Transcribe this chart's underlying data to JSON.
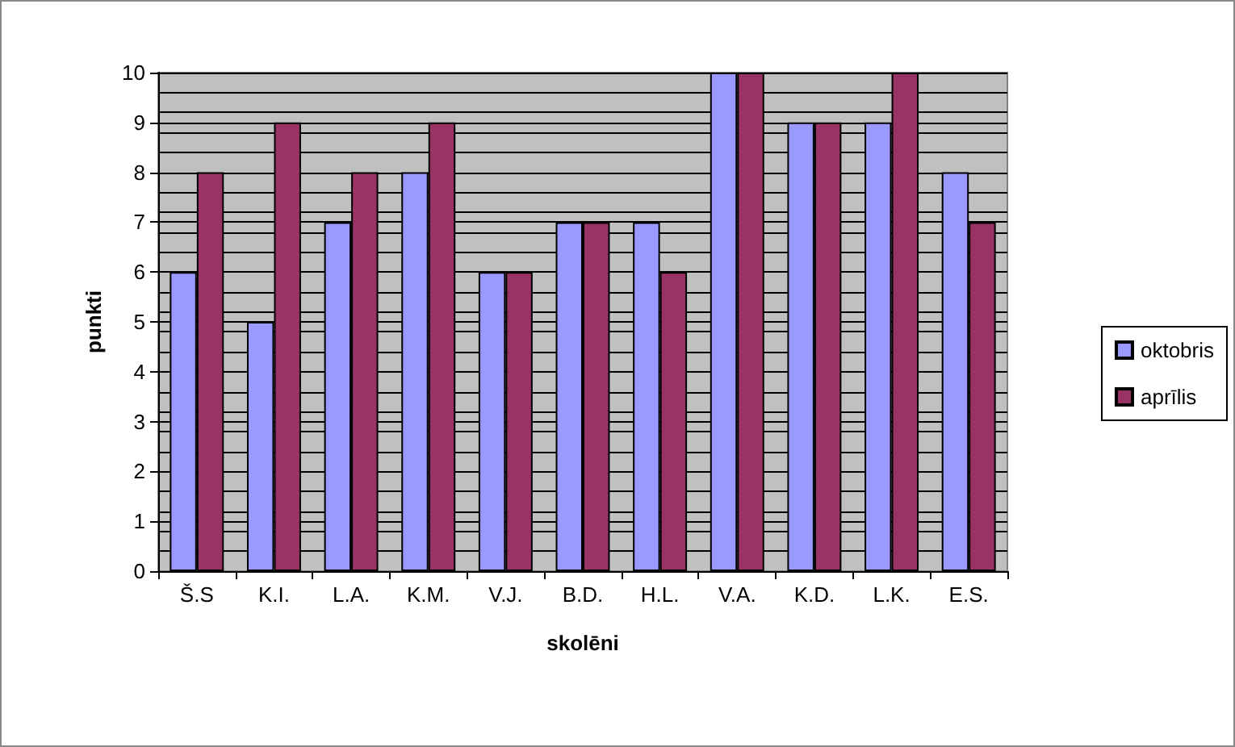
{
  "chart_data": {
    "type": "bar",
    "xlabel": "skolēni",
    "ylabel": "punkti",
    "categories": [
      "Š.S",
      "K.I.",
      "L.A.",
      "K.M.",
      "V.J.",
      "B.D.",
      "H.L.",
      "V.A.",
      "K.D.",
      "L.K.",
      "E.S."
    ],
    "series": [
      {
        "name": "oktobris",
        "color": "#9999ff",
        "values": [
          6,
          5,
          7,
          8,
          6,
          7,
          7,
          10,
          9,
          9,
          8
        ]
      },
      {
        "name": "aprīlis",
        "color": "#993366",
        "values": [
          8,
          9,
          8,
          9,
          6,
          7,
          6,
          10,
          9,
          10,
          7
        ]
      }
    ],
    "ylim": [
      0,
      10
    ],
    "yticks": [
      0,
      1,
      2,
      3,
      4,
      5,
      6,
      7,
      8,
      9,
      10
    ],
    "grid": "y",
    "legend": "right"
  }
}
